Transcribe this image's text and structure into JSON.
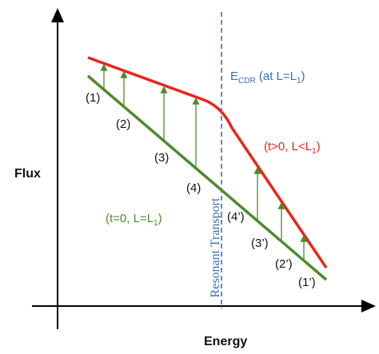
{
  "axes": {
    "y_label": "Flux",
    "x_label": "Energy"
  },
  "points": {
    "green": [
      "(1)",
      "(2)",
      "(3)",
      "(4)"
    ],
    "red": [
      "(4’)",
      "(3’)",
      "(2’)",
      "(1’)"
    ]
  },
  "ecdr": {
    "parts": [
      "E",
      "CDR",
      " (at L=L",
      "1",
      ")"
    ]
  },
  "red_curve_label": {
    "parts": [
      "(t>0, L<L",
      "1",
      ")"
    ]
  },
  "green_line_label": {
    "parts": [
      "(t=0, L=L",
      "1",
      ")"
    ]
  },
  "resonant": "Resonant Transport"
}
